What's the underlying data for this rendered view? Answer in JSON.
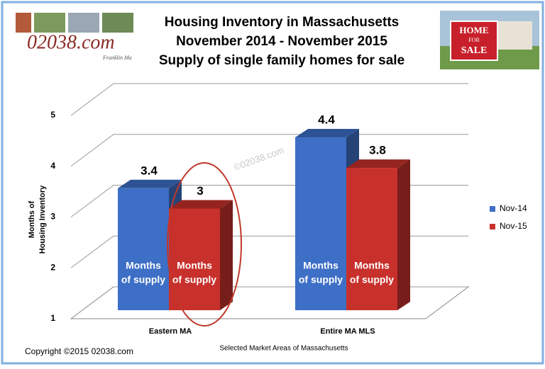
{
  "chart_data": {
    "type": "bar3d",
    "title": "Housing Inventory in Massachusetts",
    "subtitle": [
      "November 2014 - November 2015",
      "Supply of single family homes for sale"
    ],
    "logo": {
      "text": "02038.com",
      "caption": "Franklin Ma"
    },
    "sign": [
      "HOME",
      "FOR",
      "SALE"
    ],
    "watermark": "©02038.com",
    "copyright": "Copyright ©2015  02038.com",
    "ylabel": [
      "Months of",
      "Housing Inventory"
    ],
    "xlabel": "Selected Market Areas of Massachusetts",
    "categories": [
      "Eastern MA",
      "Entire MA MLS"
    ],
    "series": [
      {
        "name": "Nov-14",
        "color": "#3d6fc6",
        "values": [
          3.4,
          4.4
        ]
      },
      {
        "name": "Nov-15",
        "color": "#c7302b",
        "values": [
          3,
          3.8
        ]
      }
    ],
    "bar_label": [
      "Months",
      "of supply"
    ],
    "ylim": [
      1,
      5
    ],
    "yticks": [
      1,
      2,
      3,
      4,
      5
    ],
    "grid": true,
    "legend": "right"
  }
}
